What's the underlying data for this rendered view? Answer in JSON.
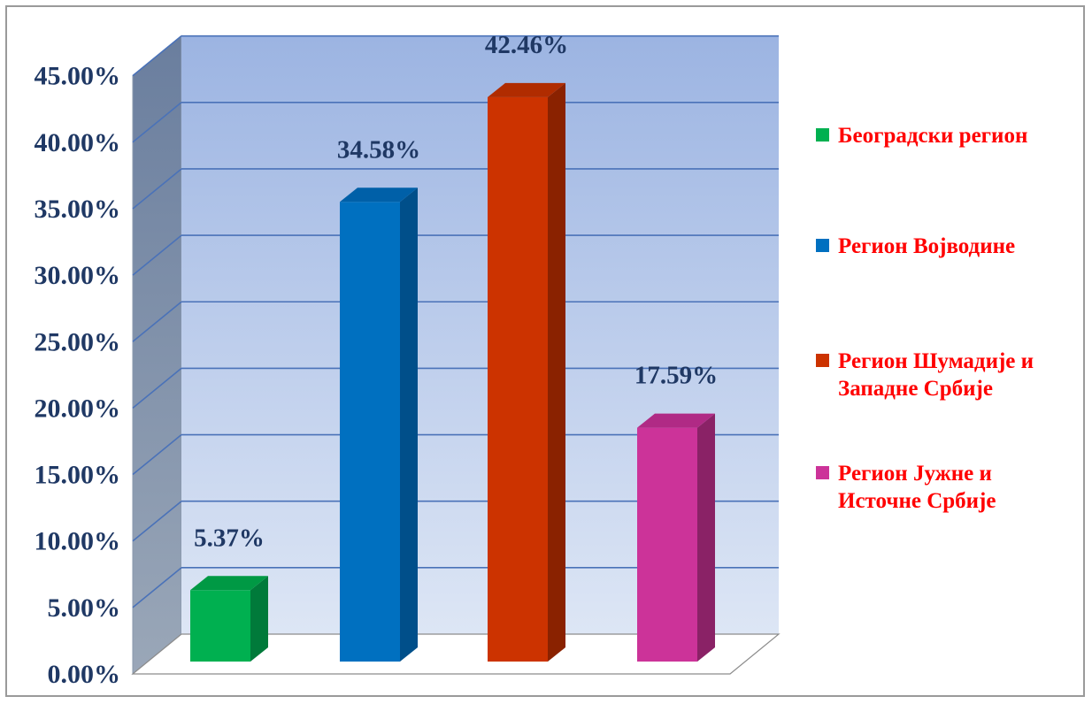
{
  "chart_data": {
    "type": "bar",
    "categories": [
      "Београдски регион",
      "Регион Војводине",
      "Регион Шумадије и Западне Србије",
      "Регион Јужне и Источне Србије"
    ],
    "values": [
      5.37,
      34.58,
      42.46,
      17.59
    ],
    "data_labels": [
      "5.37%",
      "34.58%",
      "42.46%",
      "17.59%"
    ],
    "colors": [
      "#00b050",
      "#0070c0",
      "#cc3300",
      "#cc3399"
    ],
    "side_colors": [
      "#007a3a",
      "#004f8a",
      "#8a2200",
      "#8a2266"
    ],
    "top_colors": [
      "#009944",
      "#0060a8",
      "#b02c00",
      "#b02a85"
    ],
    "yticks": [
      "0.00%",
      "5.00%",
      "10.00%",
      "15.00%",
      "20.00%",
      "25.00%",
      "30.00%",
      "35.00%",
      "40.00%",
      "45.00%"
    ],
    "ylim": [
      0,
      45
    ],
    "grid": true,
    "style": "3d-column",
    "legend": {
      "position": "right",
      "entries": [
        {
          "lines": [
            "Београдски регион"
          ]
        },
        {
          "lines": [
            "Регион Војводине"
          ]
        },
        {
          "lines": [
            "Регион Шумадије и",
            "Западне Србије"
          ]
        },
        {
          "lines": [
            "Регион Јужне и",
            "Источне Србије"
          ]
        }
      ]
    }
  }
}
